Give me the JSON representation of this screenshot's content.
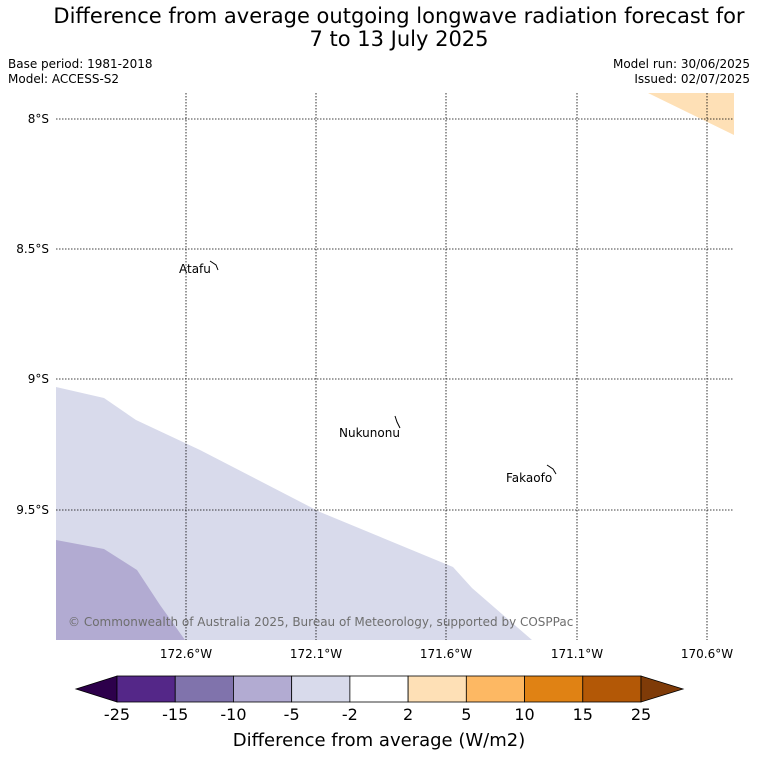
{
  "title": {
    "line1": "Difference from average outgoing longwave radiation forecast for",
    "line2": "7 to 13 July 2025"
  },
  "meta": {
    "base_period": "Base period: 1981-2018",
    "model": "Model: ACCESS-S2",
    "model_run": "Model run: 30/06/2025",
    "issued": "Issued: 02/07/2025"
  },
  "map": {
    "lon_labels": [
      "172.6°W",
      "172.1°W",
      "171.6°W",
      "171.1°W",
      "170.6°W"
    ],
    "lat_labels": [
      "8°S",
      "8.5°S",
      "9°S",
      "9.5°S"
    ],
    "places": [
      {
        "name": "Atafu"
      },
      {
        "name": "Nukunonu"
      },
      {
        "name": "Fakaofo"
      }
    ],
    "copyright": "© Commonwealth of Australia 2025, Bureau of Meteorology, supported by COSPPac"
  },
  "colorbar": {
    "ticks": [
      "-25",
      "-15",
      "-10",
      "-5",
      "-2",
      "2",
      "5",
      "10",
      "15",
      "25"
    ],
    "colors": [
      "#2d004b",
      "#542788",
      "#8073ac",
      "#b2abd2",
      "#d8daeb",
      "#ffffff",
      "#fee0b6",
      "#fdb863",
      "#e08214",
      "#b35806",
      "#7f3b08"
    ],
    "label": "Difference from average (W/m2)"
  }
}
